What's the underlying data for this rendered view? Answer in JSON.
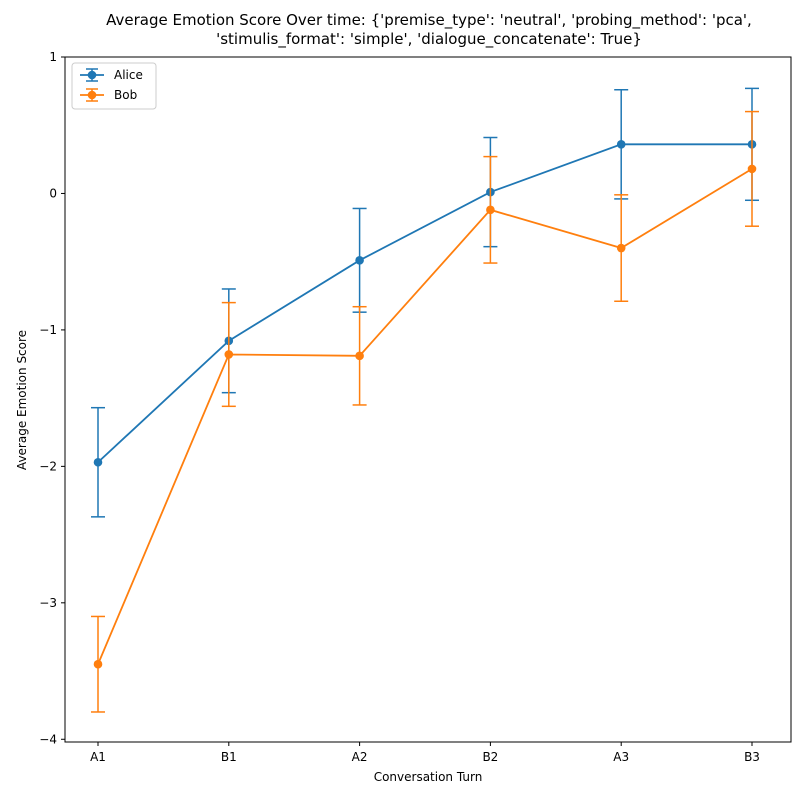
{
  "chart_data": {
    "type": "line",
    "title_lines": [
      "Average Emotion Score Over time: {'premise_type': 'neutral', 'probing_method': 'pca',",
      "'stimulis_format': 'simple', 'dialogue_concatenate': True}"
    ],
    "xlabel": "Conversation Turn",
    "ylabel": "Average Emotion Score",
    "categories": [
      "A1",
      "B1",
      "A2",
      "B2",
      "A3",
      "B3"
    ],
    "ylim": [
      -4.02,
      1.0
    ],
    "yticks": [
      -4,
      -3,
      -2,
      -1,
      0,
      1
    ],
    "ytick_labels": [
      "−4",
      "−3",
      "−2",
      "−1",
      "0",
      "1"
    ],
    "grid": false,
    "legend_position": "top-left",
    "series": [
      {
        "name": "Alice",
        "color": "#1f77b4",
        "values": [
          -1.97,
          -1.08,
          -0.49,
          0.01,
          0.36,
          0.36
        ],
        "errors": [
          0.4,
          0.38,
          0.38,
          0.4,
          0.4,
          0.41
        ]
      },
      {
        "name": "Bob",
        "color": "#ff7f0e",
        "values": [
          -3.45,
          -1.18,
          -1.19,
          -0.12,
          -0.4,
          0.18
        ],
        "errors": [
          0.35,
          0.38,
          0.36,
          0.39,
          0.39,
          0.42
        ]
      }
    ]
  }
}
